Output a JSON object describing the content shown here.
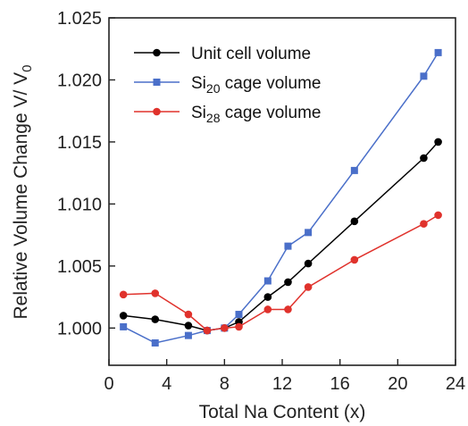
{
  "chart_data": {
    "type": "line",
    "title": "",
    "xlabel": "Total Na Content (x)",
    "ylabel": {
      "main": "Relative Volume Change V/ V",
      "sub": "0"
    },
    "xlim": [
      0,
      24
    ],
    "ylim": [
      0.997,
      1.025
    ],
    "xticks": [
      "0",
      "4",
      "8",
      "12",
      "16",
      "20",
      "24"
    ],
    "yticks": [
      "1.000",
      "1.005",
      "1.010",
      "1.015",
      "1.020",
      "1.025"
    ],
    "grid": false,
    "legend_position": "top-left",
    "series": [
      {
        "legend": {
          "main": "Unit cell volume",
          "sub": "",
          "rest": ""
        },
        "color": "#000000",
        "marker": "circle",
        "points": [
          [
            1.0,
            1.001
          ],
          [
            3.2,
            1.0007
          ],
          [
            5.5,
            1.0002
          ],
          [
            6.8,
            0.9998
          ],
          [
            8.0,
            1.0
          ],
          [
            9.0,
            1.0005
          ],
          [
            11.0,
            1.0025
          ],
          [
            12.4,
            1.0037
          ],
          [
            13.8,
            1.0052
          ],
          [
            17.0,
            1.0086
          ],
          [
            21.8,
            1.0137
          ],
          [
            22.8,
            1.015
          ]
        ]
      },
      {
        "legend": {
          "main": "Si",
          "sub": "20",
          "rest": " cage volume"
        },
        "color": "#4a6fc9",
        "marker": "square",
        "points": [
          [
            1.0,
            1.0001
          ],
          [
            3.2,
            0.9988
          ],
          [
            5.5,
            0.9994
          ],
          [
            6.8,
            0.9998
          ],
          [
            8.0,
            1.0
          ],
          [
            9.0,
            1.0011
          ],
          [
            11.0,
            1.0038
          ],
          [
            12.4,
            1.0066
          ],
          [
            13.8,
            1.0077
          ],
          [
            17.0,
            1.0127
          ],
          [
            21.8,
            1.0203
          ],
          [
            22.8,
            1.0222
          ]
        ]
      },
      {
        "legend": {
          "main": "Si",
          "sub": "28",
          "rest": " cage volume"
        },
        "color": "#e0322c",
        "marker": "circle",
        "points": [
          [
            1.0,
            1.0027
          ],
          [
            3.2,
            1.0028
          ],
          [
            5.5,
            1.0011
          ],
          [
            6.8,
            0.9998
          ],
          [
            8.0,
            1.0
          ],
          [
            9.0,
            1.0001
          ],
          [
            11.0,
            1.0015
          ],
          [
            12.4,
            1.0015
          ],
          [
            13.8,
            1.0033
          ],
          [
            17.0,
            1.0055
          ],
          [
            21.8,
            1.0084
          ],
          [
            22.8,
            1.0091
          ]
        ]
      }
    ]
  }
}
